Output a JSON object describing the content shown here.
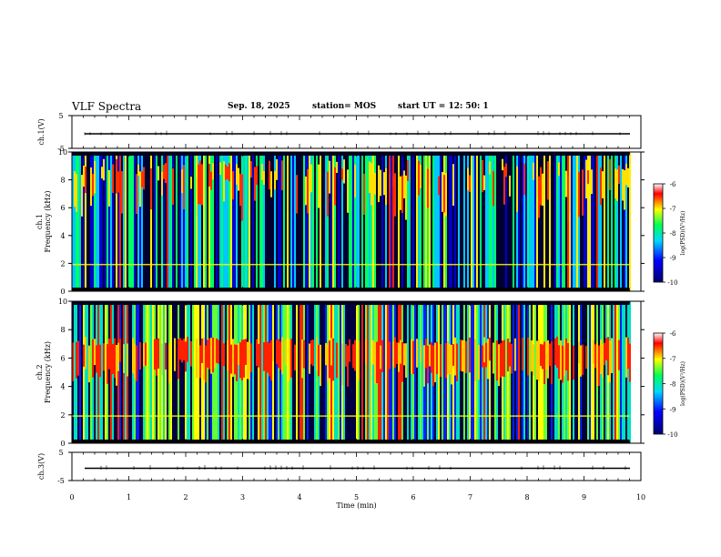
{
  "header": {
    "title": "VLF Spectra",
    "date": "Sep. 18, 2025",
    "station": "station= MOS",
    "start": "start  UT =   12: 50: 1"
  },
  "chart_data": [
    {
      "type": "line",
      "name": "ch1-waveform",
      "ylabel": "ch.1(V)",
      "ylim": [
        -5,
        5
      ],
      "ytick_labels": [
        "5",
        "-5"
      ],
      "baseline": 0,
      "xlim": [
        0,
        10
      ]
    },
    {
      "type": "heatmap",
      "name": "ch1-spectrogram",
      "ylabel": "ch.1\nFrequency (kHz)",
      "ylim": [
        0,
        10
      ],
      "yticks": [
        0,
        2,
        4,
        6,
        8,
        10
      ],
      "xlim": [
        0,
        10
      ],
      "data_end_min": 9.8,
      "colorbar": {
        "label": "log(PSD)(V²/Hz)",
        "range": [
          -10,
          -6
        ],
        "ticks": [
          "-6",
          "-7",
          "-8",
          "-9",
          "-10"
        ]
      },
      "description_bands_khz": {
        "broadband_upper": [
          4,
          9.5
        ],
        "line_2khz": 1.9,
        "low": [
          0,
          1.5
        ]
      }
    },
    {
      "type": "heatmap",
      "name": "ch2-spectrogram",
      "ylabel": "ch.2\nFrequency (kHz)",
      "ylim": [
        0,
        10
      ],
      "yticks": [
        0,
        2,
        4,
        6,
        8,
        10
      ],
      "xlim": [
        0,
        10
      ],
      "data_end_min": 9.8,
      "colorbar": {
        "label": "log(PSD)(V²/Hz)",
        "range": [
          -10,
          -6
        ],
        "ticks": [
          "-6",
          "-7",
          "-8",
          "-9",
          "-10"
        ]
      },
      "description_bands_khz": {
        "peak_band": [
          4.5,
          7.5
        ],
        "line_2khz": 1.9
      }
    },
    {
      "type": "line",
      "name": "ch3-waveform",
      "ylabel": "ch.3(V)",
      "ylim": [
        -5,
        5
      ],
      "ytick_labels": [
        "5",
        "-5"
      ],
      "baseline": 0,
      "xlim": [
        0,
        10
      ]
    }
  ],
  "xaxis": {
    "label": "Time  (min)",
    "ticks": [
      "0",
      "1",
      "2",
      "3",
      "4",
      "5",
      "6",
      "7",
      "8",
      "9",
      "10"
    ]
  },
  "colors": {
    "spectrum": [
      "#000060",
      "#0000ff",
      "#00c8ff",
      "#00ff66",
      "#ffff00",
      "#ff0000"
    ]
  }
}
